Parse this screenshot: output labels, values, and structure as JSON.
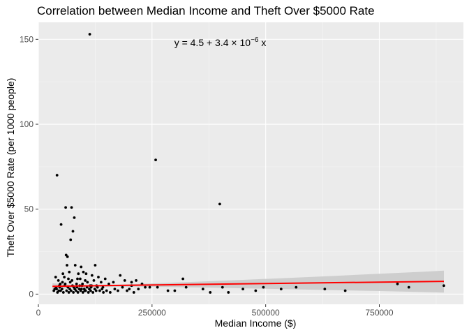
{
  "chart_data": {
    "type": "scatter",
    "title": "Correlation between Median Income and Theft Over $5000 Rate",
    "xlabel": "Median Income ($)",
    "ylabel": "Theft Over $5000 Rate (per 1000 people)",
    "xlim": [
      0,
      935000
    ],
    "ylim": [
      -6,
      160
    ],
    "x_ticks": [
      0,
      250000,
      500000,
      750000
    ],
    "x_tick_labels": [
      "0",
      "250000",
      "500000",
      "750000"
    ],
    "y_ticks": [
      0,
      50,
      100,
      150
    ],
    "y_tick_labels": [
      "0",
      "50",
      "100",
      "150"
    ],
    "grid": true,
    "annotation": {
      "equation_prefix": "y = 4.5 + 3.4 × 10",
      "exponent": "−6",
      "equation_suffix": " x",
      "x": 400000,
      "y": 148
    },
    "regression": {
      "intercept": 4.5,
      "slope": 3.4e-06,
      "x_range": [
        31000,
        892000
      ],
      "color": "#ff0000"
    },
    "confidence_band": {
      "x": [
        31000,
        80000,
        120000,
        180000,
        250000,
        350000,
        450000,
        550000,
        650000,
        750000,
        850000,
        892000
      ],
      "lower": [
        2.8,
        3.6,
        4.0,
        4.3,
        4.3,
        3.9,
        3.4,
        2.9,
        2.3,
        1.8,
        1.2,
        0.9
      ],
      "upper": [
        6.4,
        5.3,
        5.3,
        5.6,
        6.3,
        7.3,
        8.4,
        9.5,
        10.7,
        12.0,
        13.2,
        13.8
      ],
      "color": "#cccccc"
    },
    "series": [
      {
        "points": [
          [
            113000,
            153
          ],
          [
            41000,
            70
          ],
          [
            258000,
            79
          ],
          [
            399000,
            53
          ],
          [
            60000,
            51
          ],
          [
            73000,
            51
          ],
          [
            79000,
            45
          ],
          [
            50000,
            41
          ],
          [
            76000,
            37
          ],
          [
            71000,
            32
          ],
          [
            61000,
            23
          ],
          [
            64000,
            22
          ],
          [
            63000,
            17
          ],
          [
            81000,
            17
          ],
          [
            94000,
            16
          ],
          [
            125000,
            17
          ],
          [
            54000,
            12
          ],
          [
            68000,
            13
          ],
          [
            88000,
            12
          ],
          [
            99000,
            13
          ],
          [
            105000,
            12
          ],
          [
            118000,
            11
          ],
          [
            132000,
            10
          ],
          [
            57000,
            10
          ],
          [
            66000,
            9
          ],
          [
            92000,
            9
          ],
          [
            180000,
            11
          ],
          [
            147000,
            9
          ],
          [
            38000,
            10
          ],
          [
            44000,
            8
          ],
          [
            74000,
            8
          ],
          [
            103000,
            8
          ],
          [
            122000,
            8
          ],
          [
            138000,
            7
          ],
          [
            155000,
            6
          ],
          [
            165000,
            7
          ],
          [
            190000,
            8
          ],
          [
            205000,
            7
          ],
          [
            215000,
            8
          ],
          [
            228000,
            6
          ],
          [
            318000,
            9
          ],
          [
            205000,
            5
          ],
          [
            235000,
            4
          ],
          [
            245000,
            4
          ],
          [
            262000,
            4
          ],
          [
            285000,
            2
          ],
          [
            300000,
            2
          ],
          [
            325000,
            4
          ],
          [
            362000,
            3
          ],
          [
            378000,
            1
          ],
          [
            405000,
            4
          ],
          [
            418000,
            1
          ],
          [
            450000,
            3
          ],
          [
            478000,
            2
          ],
          [
            495000,
            4
          ],
          [
            534000,
            3
          ],
          [
            567000,
            4
          ],
          [
            630000,
            3
          ],
          [
            675000,
            2
          ],
          [
            790000,
            6
          ],
          [
            815000,
            4
          ],
          [
            892000,
            5
          ],
          [
            34000,
            2
          ],
          [
            36000,
            3
          ],
          [
            40000,
            3
          ],
          [
            42000,
            1
          ],
          [
            45000,
            2
          ],
          [
            47000,
            4
          ],
          [
            49000,
            2
          ],
          [
            52000,
            3
          ],
          [
            55000,
            1
          ],
          [
            58000,
            5
          ],
          [
            62000,
            2
          ],
          [
            65000,
            4
          ],
          [
            67000,
            1
          ],
          [
            69000,
            3
          ],
          [
            72000,
            2
          ],
          [
            75000,
            5
          ],
          [
            77000,
            1
          ],
          [
            80000,
            3
          ],
          [
            83000,
            2
          ],
          [
            85000,
            4
          ],
          [
            87000,
            1
          ],
          [
            90000,
            3
          ],
          [
            93000,
            2
          ],
          [
            96000,
            5
          ],
          [
            98000,
            1
          ],
          [
            101000,
            3
          ],
          [
            104000,
            2
          ],
          [
            107000,
            4
          ],
          [
            110000,
            1
          ],
          [
            112000,
            3
          ],
          [
            115000,
            2
          ],
          [
            117000,
            5
          ],
          [
            120000,
            1
          ],
          [
            124000,
            3
          ],
          [
            127000,
            2
          ],
          [
            130000,
            4
          ],
          [
            135000,
            2
          ],
          [
            140000,
            3
          ],
          [
            143000,
            1
          ],
          [
            150000,
            2
          ],
          [
            158000,
            1
          ],
          [
            168000,
            3
          ],
          [
            175000,
            2
          ],
          [
            185000,
            4
          ],
          [
            195000,
            2
          ],
          [
            200000,
            3
          ],
          [
            210000,
            1
          ],
          [
            220000,
            3
          ],
          [
            48000,
            6
          ],
          [
            53000,
            7
          ],
          [
            59000,
            6
          ],
          [
            70000,
            7
          ],
          [
            84000,
            6
          ],
          [
            97000,
            6
          ],
          [
            108000,
            7
          ],
          [
            114000,
            5
          ],
          [
            128000,
            5
          ],
          [
            142000,
            4
          ],
          [
            46000,
            5
          ],
          [
            86000,
            9
          ],
          [
            91000,
            5
          ],
          [
            78000,
            4
          ],
          [
            95000,
            3
          ],
          [
            102000,
            2
          ],
          [
            116000,
            4
          ],
          [
            39000,
            4
          ]
        ],
        "color": "#000000"
      }
    ]
  }
}
